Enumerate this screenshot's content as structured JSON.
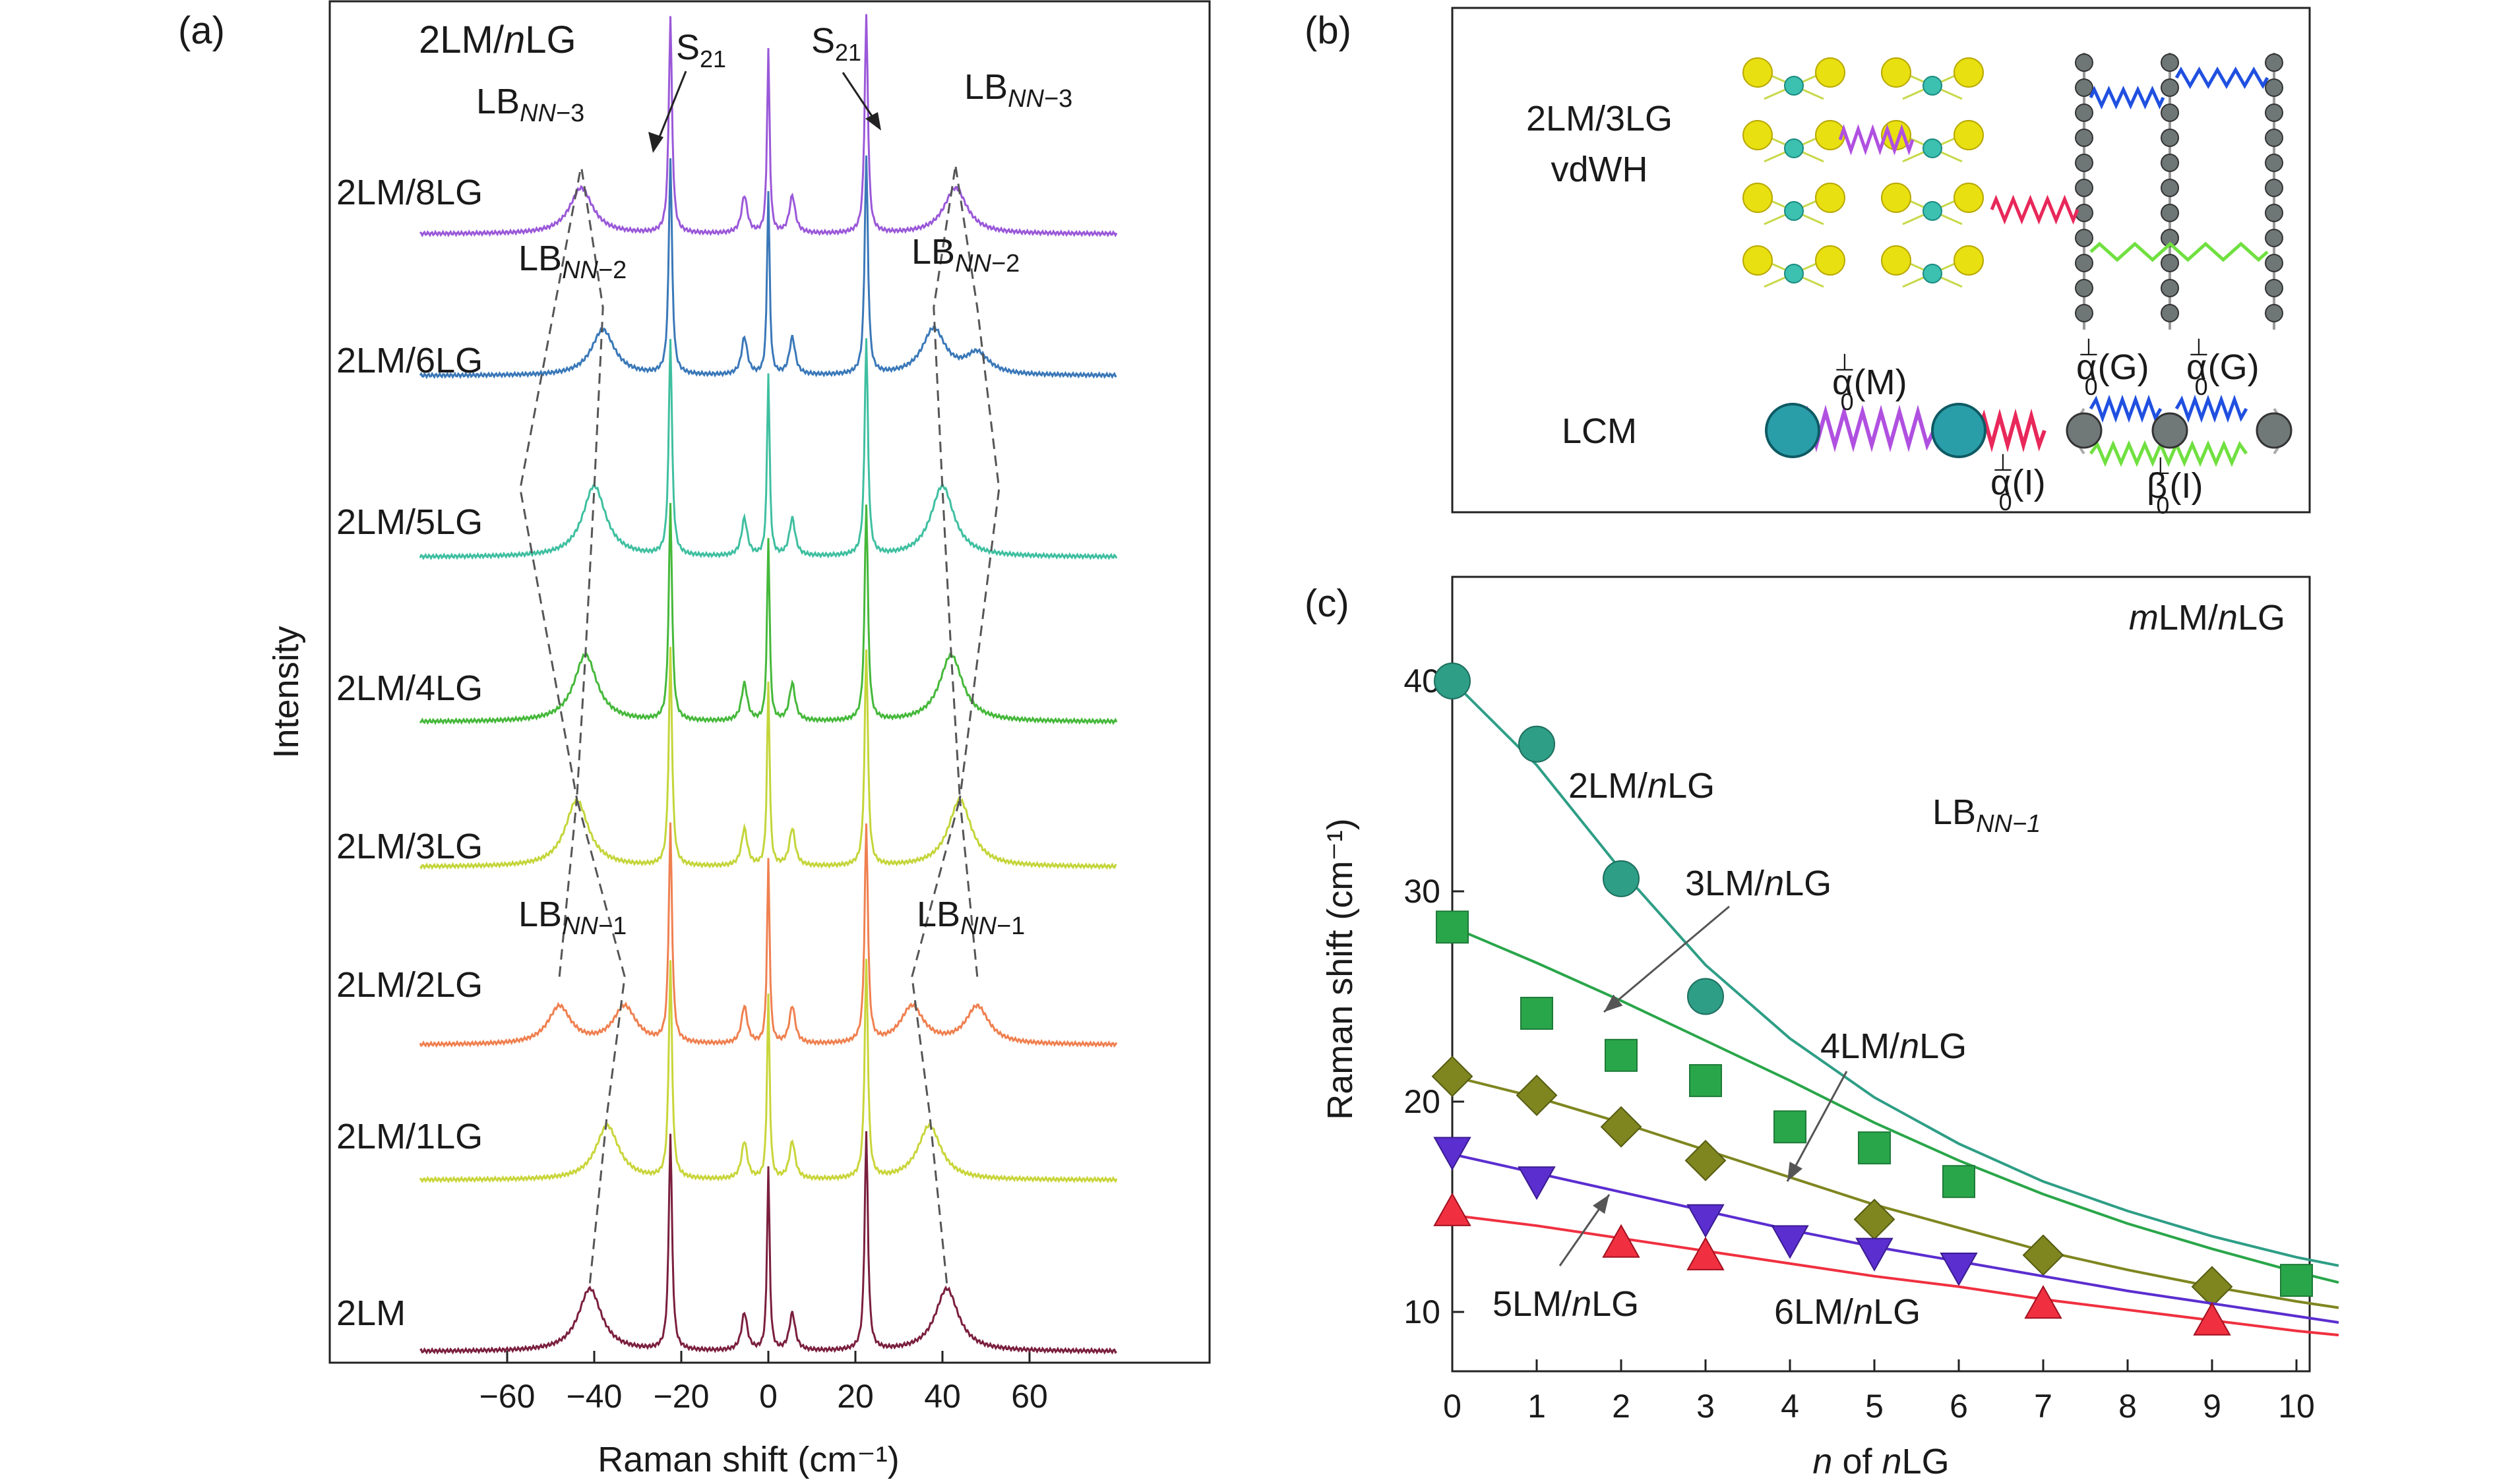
{
  "panel_a": {
    "letter": "(a)",
    "title_prefix": "2LM/",
    "title_italic": "n",
    "title_suffix": "LG",
    "ylabel": "Intensity",
    "xlabel": "Raman shift (cm⁻¹)",
    "s21_label": "S",
    "s21_sub": "21",
    "lb_main": "LB",
    "lb_nn": "NN",
    "lb_m1": "−1",
    "lb_m2": "−2",
    "lb_m3": "−3"
  },
  "panel_b": {
    "letter": "(b)",
    "vdwh_line1": "2LM/3LG",
    "vdwh_line2": "vdWH",
    "lcm_label": "LCM",
    "alpha_M": "α",
    "alpha_sub": "0",
    "perp": "⊥",
    "arg_M": "(M)",
    "arg_G": "(G)",
    "arg_I": "(I)",
    "beta": "β"
  },
  "panel_c": {
    "letter": "(c)",
    "corner_prefix": "m",
    "corner_mid": "LM/",
    "corner_n": "n",
    "corner_suffix": "LG",
    "lb_main": "LB",
    "lb_sub": "NN−1",
    "ylabel": "Raman shift (cm⁻¹)",
    "xlabel_n": "n",
    "xlabel_mid": " of ",
    "xlabel_n2": "n",
    "xlabel_suffix": "LG"
  },
  "chart_data": [
    {
      "panel": "a",
      "type": "line",
      "xlabel": "Raman shift (cm⁻¹)",
      "ylabel": "Intensity",
      "xlim": [
        -80,
        80
      ],
      "xticks": [
        -60,
        -40,
        -20,
        0,
        20,
        40,
        60
      ],
      "s21_position": 22.5,
      "series": [
        {
          "name": "2LM",
          "color": "#7a1f3d",
          "peaks": [
            [
              -41,
              0.75
            ],
            [
              41,
              0.75
            ]
          ],
          "lb_nn": [
            [
              -41,
              41
            ]
          ]
        },
        {
          "name": "2LM/1LG",
          "color": "#c9d53a",
          "peaks": [
            [
              -37,
              0.65
            ],
            [
              37,
              0.65
            ]
          ],
          "lb_nn": [
            [
              -37,
              37
            ]
          ]
        },
        {
          "name": "2LM/2LG",
          "color": "#ef8050",
          "peaks": [
            [
              -48,
              0.45
            ],
            [
              -33,
              0.45
            ],
            [
              33,
              0.45
            ],
            [
              48,
              0.45
            ]
          ],
          "lb_nn": [
            [
              -33,
              33
            ],
            [
              -48,
              48
            ]
          ]
        },
        {
          "name": "2LM/3LG",
          "color": "#c4d53a",
          "peaks": [
            [
              -44,
              0.8
            ],
            [
              44,
              0.8
            ]
          ],
          "lb_nn": [
            [
              -44,
              44
            ]
          ]
        },
        {
          "name": "2LM/4LG",
          "color": "#45b83a",
          "peaks": [
            [
              -42,
              0.8
            ],
            [
              42,
              0.8
            ]
          ],
          "lb_nn": [
            [
              -42,
              42
            ]
          ]
        },
        {
          "name": "2LM/5LG",
          "color": "#3fbfa0",
          "peaks": [
            [
              -40,
              0.85
            ],
            [
              40,
              0.85
            ]
          ],
          "lb_nn": [
            [
              -40,
              40
            ]
          ]
        },
        {
          "name": "2LM/6LG",
          "color": "#3a78b8",
          "peaks": [
            [
              -38,
              0.55
            ],
            [
              38,
              0.55
            ],
            [
              48,
              0.25
            ]
          ],
          "lb_nn": [
            [
              -38,
              38
            ]
          ]
        },
        {
          "name": "2LM/8LG",
          "color": "#9a58d8",
          "peaks": [
            [
              -43,
              0.55
            ],
            [
              43,
              0.55
            ]
          ],
          "lb_nn": [
            [
              -43,
              43
            ]
          ]
        }
      ]
    },
    {
      "panel": "c",
      "type": "scatter",
      "xlabel": "n of nLG",
      "ylabel": "Raman shift (cm⁻¹)",
      "xlim": [
        0,
        10.5
      ],
      "ylim": [
        8,
        45
      ],
      "xticks": [
        0,
        1,
        2,
        3,
        4,
        5,
        6,
        7,
        8,
        9,
        10
      ],
      "yticks": [
        10,
        20,
        30,
        40
      ],
      "series": [
        {
          "name": "2LM/nLG",
          "color": "#2e9e86",
          "marker": "circle",
          "x": [
            0,
            1,
            2,
            3
          ],
          "y": [
            40.0,
            37.0,
            30.6,
            25.0
          ],
          "fit_x": [
            0,
            1,
            2,
            3,
            4,
            5,
            6,
            7,
            8,
            9,
            10,
            10.5
          ],
          "fit_y": [
            40.0,
            36.0,
            31.0,
            26.5,
            23.0,
            20.2,
            18.0,
            16.2,
            14.8,
            13.6,
            12.6,
            12.2
          ]
        },
        {
          "name": "3LM/nLG",
          "color": "#2aa64a",
          "marker": "square",
          "x": [
            0,
            1,
            2,
            3,
            4,
            5,
            6,
            10
          ],
          "y": [
            28.3,
            24.2,
            22.2,
            21.0,
            18.8,
            17.8,
            16.2,
            11.5
          ],
          "fit_x": [
            0,
            1,
            2,
            3,
            4,
            5,
            6,
            7,
            8,
            9,
            10,
            10.5
          ],
          "fit_y": [
            28.3,
            26.6,
            24.8,
            22.9,
            21.0,
            19.0,
            17.2,
            15.6,
            14.2,
            13.0,
            11.9,
            11.4
          ]
        },
        {
          "name": "4LM/nLG",
          "color": "#7f8620",
          "marker": "diamond",
          "x": [
            0,
            1,
            2,
            3,
            5,
            7,
            9
          ],
          "y": [
            21.2,
            20.3,
            18.8,
            17.2,
            14.4,
            12.7,
            11.2
          ],
          "fit_x": [
            0,
            1,
            2,
            3,
            4,
            5,
            6,
            7,
            8,
            9,
            10,
            10.5
          ],
          "fit_y": [
            21.2,
            20.2,
            19.0,
            17.7,
            16.4,
            15.1,
            14.0,
            12.9,
            12.0,
            11.2,
            10.5,
            10.2
          ]
        },
        {
          "name": "5LM/nLG",
          "color": "#5b2ed0",
          "marker": "triangle-down",
          "x": [
            0,
            1,
            3,
            4,
            5,
            6
          ],
          "y": [
            17.6,
            16.2,
            14.4,
            13.4,
            12.8,
            12.1
          ],
          "fit_x": [
            0,
            1,
            2,
            3,
            4,
            5,
            6,
            7,
            8,
            9,
            10,
            10.5
          ],
          "fit_y": [
            17.5,
            16.6,
            15.7,
            14.8,
            13.9,
            13.1,
            12.4,
            11.7,
            11.0,
            10.4,
            9.8,
            9.5
          ]
        },
        {
          "name": "6LM/nLG",
          "color": "#f03040",
          "marker": "triangle-up",
          "x": [
            0,
            2,
            3,
            7,
            9
          ],
          "y": [
            14.8,
            13.3,
            12.7,
            10.4,
            9.6
          ],
          "fit_x": [
            0,
            1,
            2,
            3,
            4,
            5,
            6,
            7,
            8,
            9,
            10,
            10.5
          ],
          "fit_y": [
            14.6,
            14.1,
            13.5,
            12.9,
            12.3,
            11.7,
            11.2,
            10.6,
            10.1,
            9.6,
            9.1,
            8.9
          ]
        }
      ]
    }
  ]
}
